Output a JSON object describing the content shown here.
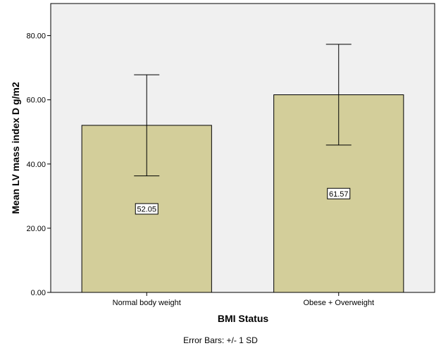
{
  "chart_data": {
    "type": "bar",
    "categories": [
      "Normal body weight",
      "Obese + Overweight"
    ],
    "values": [
      52.05,
      61.57
    ],
    "data_labels": [
      "52.05",
      "61.57"
    ],
    "error_bars": [
      {
        "low": 36.3,
        "high": 67.8
      },
      {
        "low": 45.9,
        "high": 77.3
      }
    ],
    "xlabel": "BMI Status",
    "ylabel": "Mean LV mass index D g/m2",
    "ylim": [
      0,
      90
    ],
    "yticks": [
      0,
      20,
      40,
      60,
      80
    ],
    "ytick_labels": [
      "0.00",
      "20.00",
      "40.00",
      "60.00",
      "80.00"
    ],
    "footnote": "Error Bars: +/- 1 SD",
    "grid": false,
    "colors": {
      "bar": "#d3ce9a",
      "plot_bg": "#f0f0f0",
      "edge": "#000000"
    }
  }
}
